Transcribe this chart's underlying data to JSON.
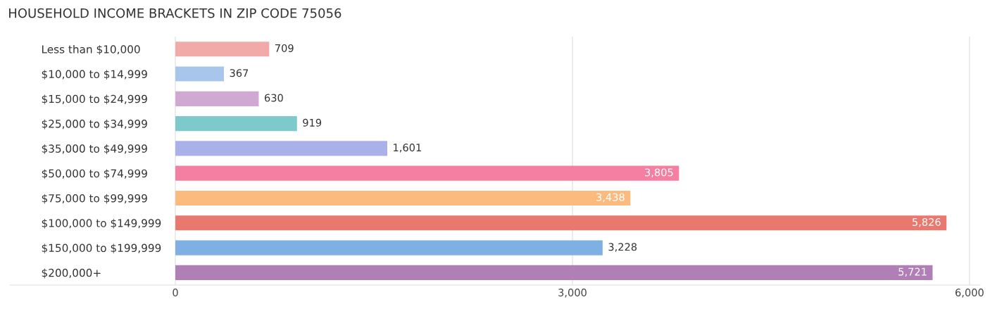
{
  "chart_data": {
    "type": "bar",
    "orientation": "horizontal",
    "title": "HOUSEHOLD INCOME BRACKETS IN ZIP CODE 75056",
    "categories": [
      "Less than $10,000",
      "$10,000 to $14,999",
      "$15,000 to $24,999",
      "$25,000 to $34,999",
      "$35,000 to $49,999",
      "$50,000 to $74,999",
      "$75,000 to $99,999",
      "$100,000 to $149,999",
      "$150,000 to $199,999",
      "$200,000+"
    ],
    "values": [
      709,
      367,
      630,
      919,
      1601,
      3805,
      3438,
      5826,
      3228,
      5721
    ],
    "value_labels": [
      "709",
      "367",
      "630",
      "919",
      "1,601",
      "3,805",
      "3,438",
      "5,826",
      "3,228",
      "5,721"
    ],
    "colors": [
      "#f2aaa9",
      "#a8c6ec",
      "#d0a9d2",
      "#7dc9cc",
      "#aab0e8",
      "#f57ea3",
      "#fbbb7e",
      "#e9786f",
      "#7fb0e3",
      "#b07fb5"
    ],
    "xlim": [
      -1250,
      6080
    ],
    "xticks": [
      0,
      {
        "value": 3000,
        "label": "3,000"
      },
      {
        "value": 6000,
        "label": "6,000"
      }
    ],
    "grid": "x"
  }
}
